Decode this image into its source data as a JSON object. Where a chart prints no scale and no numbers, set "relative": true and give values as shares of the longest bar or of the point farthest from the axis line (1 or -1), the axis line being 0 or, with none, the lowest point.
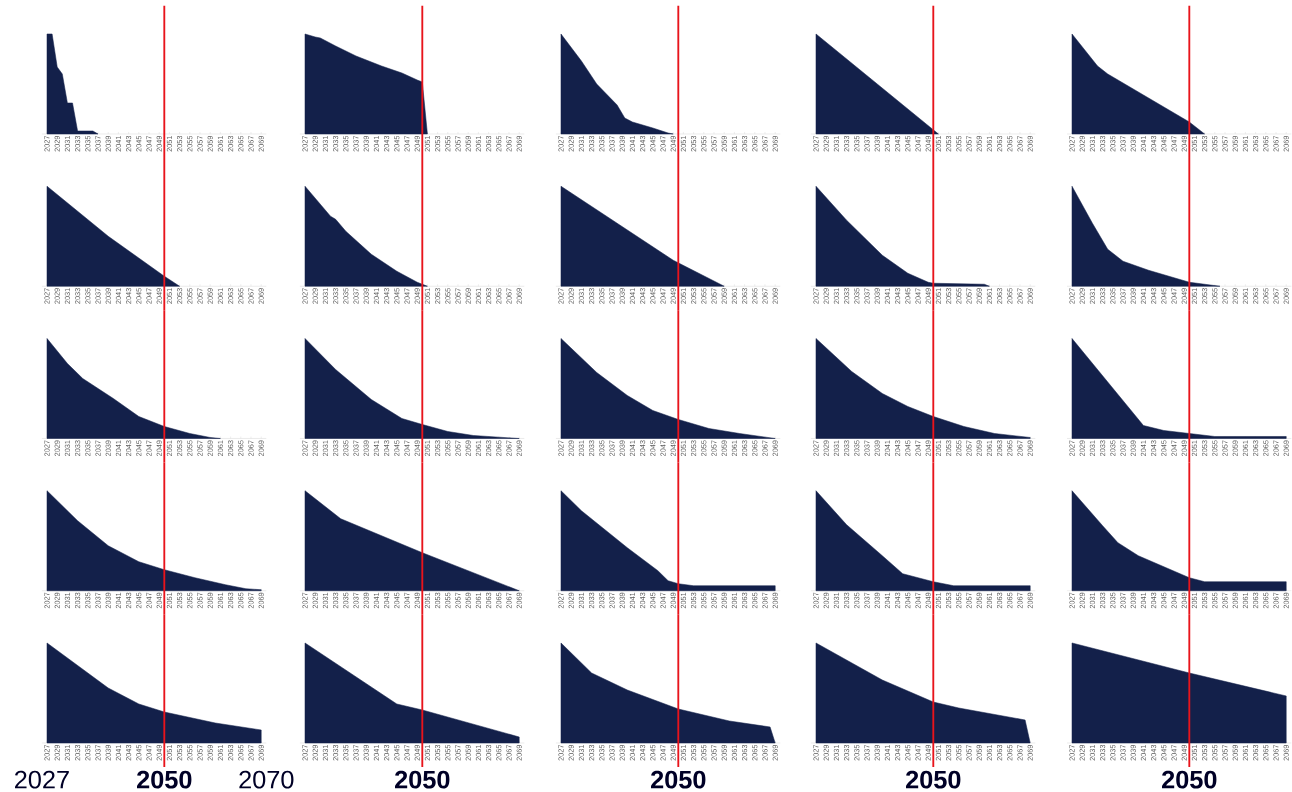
{
  "chart_data": [
    {
      "type": "area",
      "relative": true,
      "color": "#13204a",
      "xlim": [
        2026,
        2070
      ],
      "xticks": [
        2027,
        2029,
        2031,
        2033,
        2035,
        2037,
        2039,
        2041,
        2043,
        2045,
        2047,
        2049,
        2051,
        2053,
        2055,
        2057,
        2059,
        2061,
        2063,
        2065,
        2067,
        2069
      ],
      "ref_lines": [
        {
          "axis": "x",
          "value": 2050,
          "color": "#e8141b"
        }
      ],
      "x": [
        2027,
        2028,
        2029,
        2030,
        2031,
        2032,
        2033,
        2036,
        2037
      ],
      "values": [
        1,
        1,
        0.67,
        0.6,
        0.31,
        0.31,
        0.03,
        0.03,
        0
      ]
    },
    {
      "type": "area",
      "relative": true,
      "color": "#13204a",
      "xlim": [
        2026,
        2070
      ],
      "xticks": [
        2027,
        2029,
        2031,
        2033,
        2035,
        2037,
        2039,
        2041,
        2043,
        2045,
        2047,
        2049,
        2051,
        2053,
        2055,
        2057,
        2059,
        2061,
        2063,
        2065,
        2067,
        2069
      ],
      "ref_lines": [
        {
          "axis": "x",
          "value": 2050,
          "color": "#e8141b"
        }
      ],
      "x": [
        2027,
        2029,
        2030,
        2033,
        2037,
        2042,
        2046,
        2049,
        2050,
        2051
      ],
      "values": [
        1,
        0.97,
        0.96,
        0.88,
        0.78,
        0.68,
        0.61,
        0.54,
        0.52,
        0
      ]
    },
    {
      "type": "area",
      "relative": true,
      "color": "#13204a",
      "xlim": [
        2026,
        2070
      ],
      "xticks": [
        2027,
        2029,
        2031,
        2033,
        2035,
        2037,
        2039,
        2041,
        2043,
        2045,
        2047,
        2049,
        2051,
        2053,
        2055,
        2057,
        2059,
        2061,
        2063,
        2065,
        2067,
        2069
      ],
      "ref_lines": [
        {
          "axis": "x",
          "value": 2050,
          "color": "#e8141b"
        }
      ],
      "x": [
        2027,
        2031,
        2034,
        2038,
        2039.5,
        2041,
        2045,
        2048,
        2049
      ],
      "values": [
        1,
        0.73,
        0.5,
        0.29,
        0.16,
        0.12,
        0.06,
        0.01,
        0
      ]
    },
    {
      "type": "area",
      "relative": true,
      "color": "#13204a",
      "xlim": [
        2026,
        2070
      ],
      "xticks": [
        2027,
        2029,
        2031,
        2033,
        2035,
        2037,
        2039,
        2041,
        2043,
        2045,
        2047,
        2049,
        2051,
        2053,
        2055,
        2057,
        2059,
        2061,
        2063,
        2065,
        2067,
        2069
      ],
      "ref_lines": [
        {
          "axis": "x",
          "value": 2050,
          "color": "#e8141b"
        }
      ],
      "x": [
        2027,
        2039,
        2051
      ],
      "values": [
        1,
        0.5,
        0
      ]
    },
    {
      "type": "area",
      "relative": true,
      "color": "#13204a",
      "xlim": [
        2026,
        2070
      ],
      "xticks": [
        2027,
        2029,
        2031,
        2033,
        2035,
        2037,
        2039,
        2041,
        2043,
        2045,
        2047,
        2049,
        2051,
        2053,
        2055,
        2057,
        2059,
        2061,
        2063,
        2065,
        2067,
        2069
      ],
      "ref_lines": [
        {
          "axis": "x",
          "value": 2050,
          "color": "#e8141b"
        }
      ],
      "x": [
        2027,
        2032,
        2034,
        2041,
        2050,
        2053
      ],
      "values": [
        1,
        0.68,
        0.6,
        0.39,
        0.12,
        0
      ]
    },
    {
      "type": "area",
      "relative": true,
      "color": "#13204a",
      "xlim": [
        2026,
        2070
      ],
      "xticks": [
        2027,
        2029,
        2031,
        2033,
        2035,
        2037,
        2039,
        2041,
        2043,
        2045,
        2047,
        2049,
        2051,
        2053,
        2055,
        2057,
        2059,
        2061,
        2063,
        2065,
        2067,
        2069
      ],
      "ref_lines": [
        {
          "axis": "x",
          "value": 2050,
          "color": "#e8141b"
        }
      ],
      "x": [
        2027,
        2039,
        2050,
        2053
      ],
      "values": [
        1,
        0.5,
        0.1,
        0
      ]
    },
    {
      "type": "area",
      "relative": true,
      "color": "#13204a",
      "xlim": [
        2026,
        2070
      ],
      "xticks": [
        2027,
        2029,
        2031,
        2033,
        2035,
        2037,
        2039,
        2041,
        2043,
        2045,
        2047,
        2049,
        2051,
        2053,
        2055,
        2057,
        2059,
        2061,
        2063,
        2065,
        2067,
        2069
      ],
      "ref_lines": [
        {
          "axis": "x",
          "value": 2050,
          "color": "#e8141b"
        }
      ],
      "x": [
        2027,
        2032,
        2033,
        2035,
        2040,
        2045,
        2049,
        2051
      ],
      "values": [
        1,
        0.7,
        0.67,
        0.55,
        0.32,
        0.15,
        0.04,
        0
      ]
    },
    {
      "type": "area",
      "relative": true,
      "color": "#13204a",
      "xlim": [
        2026,
        2070
      ],
      "xticks": [
        2027,
        2029,
        2031,
        2033,
        2035,
        2037,
        2039,
        2041,
        2043,
        2045,
        2047,
        2049,
        2051,
        2053,
        2055,
        2057,
        2059,
        2061,
        2063,
        2065,
        2067,
        2069
      ],
      "ref_lines": [
        {
          "axis": "x",
          "value": 2050,
          "color": "#e8141b"
        }
      ],
      "x": [
        2027,
        2038,
        2049,
        2059
      ],
      "values": [
        1,
        0.63,
        0.26,
        0
      ]
    },
    {
      "type": "area",
      "relative": true,
      "color": "#13204a",
      "xlim": [
        2026,
        2070
      ],
      "xticks": [
        2027,
        2029,
        2031,
        2033,
        2035,
        2037,
        2039,
        2041,
        2043,
        2045,
        2047,
        2049,
        2051,
        2053,
        2055,
        2057,
        2059,
        2061,
        2063,
        2065,
        2067,
        2069
      ],
      "ref_lines": [
        {
          "axis": "x",
          "value": 2050,
          "color": "#e8141b"
        }
      ],
      "x": [
        2027,
        2033,
        2040,
        2045,
        2049,
        2050,
        2060,
        2061
      ],
      "values": [
        1,
        0.66,
        0.31,
        0.13,
        0.04,
        0.03,
        0.02,
        0
      ]
    },
    {
      "type": "area",
      "relative": true,
      "color": "#13204a",
      "xlim": [
        2026,
        2070
      ],
      "xticks": [
        2027,
        2029,
        2031,
        2033,
        2035,
        2037,
        2039,
        2041,
        2043,
        2045,
        2047,
        2049,
        2051,
        2053,
        2055,
        2057,
        2059,
        2061,
        2063,
        2065,
        2067,
        2069
      ],
      "ref_lines": [
        {
          "axis": "x",
          "value": 2050,
          "color": "#e8141b"
        }
      ],
      "x": [
        2027,
        2031,
        2034,
        2037,
        2042,
        2050,
        2056
      ],
      "values": [
        1,
        0.63,
        0.37,
        0.25,
        0.16,
        0.04,
        0
      ]
    },
    {
      "type": "area",
      "relative": true,
      "color": "#13204a",
      "xlim": [
        2026,
        2070
      ],
      "xticks": [
        2027,
        2029,
        2031,
        2033,
        2035,
        2037,
        2039,
        2041,
        2043,
        2045,
        2047,
        2049,
        2051,
        2053,
        2055,
        2057,
        2059,
        2061,
        2063,
        2065,
        2067,
        2069
      ],
      "ref_lines": [
        {
          "axis": "x",
          "value": 2050,
          "color": "#e8141b"
        }
      ],
      "x": [
        2027,
        2031,
        2034,
        2040,
        2045,
        2050,
        2055,
        2059,
        2061
      ],
      "values": [
        1,
        0.75,
        0.6,
        0.4,
        0.22,
        0.12,
        0.05,
        0.01,
        0
      ]
    },
    {
      "type": "area",
      "relative": true,
      "color": "#13204a",
      "xlim": [
        2026,
        2070
      ],
      "xticks": [
        2027,
        2029,
        2031,
        2033,
        2035,
        2037,
        2039,
        2041,
        2043,
        2045,
        2047,
        2049,
        2051,
        2053,
        2055,
        2057,
        2059,
        2061,
        2063,
        2065,
        2067,
        2069
      ],
      "ref_lines": [
        {
          "axis": "x",
          "value": 2050,
          "color": "#e8141b"
        }
      ],
      "x": [
        2027,
        2033,
        2040,
        2046,
        2050,
        2055,
        2060,
        2069
      ],
      "values": [
        1,
        0.69,
        0.39,
        0.2,
        0.14,
        0.07,
        0.03,
        0
      ]
    },
    {
      "type": "area",
      "relative": true,
      "color": "#13204a",
      "xlim": [
        2026,
        2070
      ],
      "xticks": [
        2027,
        2029,
        2031,
        2033,
        2035,
        2037,
        2039,
        2041,
        2043,
        2045,
        2047,
        2049,
        2051,
        2053,
        2055,
        2057,
        2059,
        2061,
        2063,
        2065,
        2067,
        2069
      ],
      "ref_lines": [
        {
          "axis": "x",
          "value": 2050,
          "color": "#e8141b"
        }
      ],
      "x": [
        2027,
        2034,
        2040,
        2045,
        2050,
        2056,
        2062,
        2069
      ],
      "values": [
        1,
        0.66,
        0.43,
        0.28,
        0.19,
        0.1,
        0.05,
        0
      ]
    },
    {
      "type": "area",
      "relative": true,
      "color": "#13204a",
      "xlim": [
        2026,
        2070
      ],
      "xticks": [
        2027,
        2029,
        2031,
        2033,
        2035,
        2037,
        2039,
        2041,
        2043,
        2045,
        2047,
        2049,
        2051,
        2053,
        2055,
        2057,
        2059,
        2061,
        2063,
        2065,
        2067,
        2069
      ],
      "ref_lines": [
        {
          "axis": "x",
          "value": 2050,
          "color": "#e8141b"
        }
      ],
      "x": [
        2027,
        2034,
        2040,
        2045,
        2050,
        2056,
        2062,
        2069
      ],
      "values": [
        1,
        0.67,
        0.45,
        0.32,
        0.22,
        0.12,
        0.05,
        0.01
      ]
    },
    {
      "type": "area",
      "relative": true,
      "color": "#13204a",
      "xlim": [
        2026,
        2070
      ],
      "xticks": [
        2027,
        2029,
        2031,
        2033,
        2035,
        2037,
        2039,
        2041,
        2043,
        2045,
        2047,
        2049,
        2051,
        2053,
        2055,
        2057,
        2059,
        2061,
        2063,
        2065,
        2067,
        2069
      ],
      "ref_lines": [
        {
          "axis": "x",
          "value": 2050,
          "color": "#e8141b"
        }
      ],
      "x": [
        2027,
        2041,
        2045,
        2050,
        2055,
        2069
      ],
      "values": [
        1,
        0.13,
        0.08,
        0.05,
        0.02,
        0.02
      ]
    },
    {
      "type": "area",
      "relative": true,
      "color": "#13204a",
      "xlim": [
        2026,
        2070
      ],
      "xticks": [
        2027,
        2029,
        2031,
        2033,
        2035,
        2037,
        2039,
        2041,
        2043,
        2045,
        2047,
        2049,
        2051,
        2053,
        2055,
        2057,
        2059,
        2061,
        2063,
        2065,
        2067,
        2069
      ],
      "ref_lines": [
        {
          "axis": "x",
          "value": 2050,
          "color": "#e8141b"
        }
      ],
      "x": [
        2027,
        2033,
        2039,
        2045,
        2050,
        2056,
        2062,
        2066,
        2069
      ],
      "values": [
        1,
        0.7,
        0.45,
        0.29,
        0.21,
        0.13,
        0.06,
        0.02,
        0.01
      ]
    },
    {
      "type": "area",
      "relative": true,
      "color": "#13204a",
      "xlim": [
        2026,
        2070
      ],
      "xticks": [
        2027,
        2029,
        2031,
        2033,
        2035,
        2037,
        2039,
        2041,
        2043,
        2045,
        2047,
        2049,
        2051,
        2053,
        2055,
        2057,
        2059,
        2061,
        2063,
        2065,
        2067,
        2069
      ],
      "ref_lines": [
        {
          "axis": "x",
          "value": 2050,
          "color": "#e8141b"
        }
      ],
      "x": [
        2027,
        2034,
        2050,
        2069
      ],
      "values": [
        1,
        0.72,
        0.38,
        0
      ]
    },
    {
      "type": "area",
      "relative": true,
      "color": "#13204a",
      "xlim": [
        2026,
        2070
      ],
      "xticks": [
        2027,
        2029,
        2031,
        2033,
        2035,
        2037,
        2039,
        2041,
        2043,
        2045,
        2047,
        2049,
        2051,
        2053,
        2055,
        2057,
        2059,
        2061,
        2063,
        2065,
        2067,
        2069
      ],
      "ref_lines": [
        {
          "axis": "x",
          "value": 2050,
          "color": "#e8141b"
        }
      ],
      "x": [
        2027,
        2031,
        2040,
        2046,
        2048,
        2050,
        2053,
        2069
      ],
      "values": [
        1,
        0.8,
        0.43,
        0.2,
        0.1,
        0.07,
        0.05,
        0.05
      ]
    },
    {
      "type": "area",
      "relative": true,
      "color": "#13204a",
      "xlim": [
        2026,
        2070
      ],
      "xticks": [
        2027,
        2029,
        2031,
        2033,
        2035,
        2037,
        2039,
        2041,
        2043,
        2045,
        2047,
        2049,
        2051,
        2053,
        2055,
        2057,
        2059,
        2061,
        2063,
        2065,
        2067,
        2069
      ],
      "ref_lines": [
        {
          "axis": "x",
          "value": 2050,
          "color": "#e8141b"
        }
      ],
      "x": [
        2027,
        2033,
        2040,
        2044,
        2050,
        2054,
        2069
      ],
      "values": [
        1,
        0.66,
        0.35,
        0.17,
        0.09,
        0.05,
        0.05
      ]
    },
    {
      "type": "area",
      "relative": true,
      "color": "#13204a",
      "xlim": [
        2026,
        2070
      ],
      "xticks": [
        2027,
        2029,
        2031,
        2033,
        2035,
        2037,
        2039,
        2041,
        2043,
        2045,
        2047,
        2049,
        2051,
        2053,
        2055,
        2057,
        2059,
        2061,
        2063,
        2065,
        2067,
        2069
      ],
      "ref_lines": [
        {
          "axis": "x",
          "value": 2050,
          "color": "#e8141b"
        }
      ],
      "x": [
        2027,
        2033,
        2036,
        2040,
        2050,
        2053,
        2069
      ],
      "values": [
        1,
        0.65,
        0.48,
        0.35,
        0.13,
        0.09,
        0.09
      ]
    },
    {
      "type": "area",
      "relative": true,
      "color": "#13204a",
      "xlim": [
        2026,
        2070
      ],
      "xticks": [
        2027,
        2029,
        2031,
        2033,
        2035,
        2037,
        2039,
        2041,
        2043,
        2045,
        2047,
        2049,
        2051,
        2053,
        2055,
        2057,
        2059,
        2061,
        2063,
        2065,
        2067,
        2069
      ],
      "ref_lines": [
        {
          "axis": "x",
          "value": 2050,
          "color": "#e8141b"
        }
      ],
      "x": [
        2027,
        2039,
        2045,
        2050,
        2060,
        2069
      ],
      "values": [
        1,
        0.55,
        0.39,
        0.31,
        0.2,
        0.13
      ],
      "annotations": [
        "2027",
        "2050",
        "2070"
      ]
    },
    {
      "type": "area",
      "relative": true,
      "color": "#13204a",
      "xlim": [
        2026,
        2070
      ],
      "xticks": [
        2027,
        2029,
        2031,
        2033,
        2035,
        2037,
        2039,
        2041,
        2043,
        2045,
        2047,
        2049,
        2051,
        2053,
        2055,
        2057,
        2059,
        2061,
        2063,
        2065,
        2067,
        2069
      ],
      "ref_lines": [
        {
          "axis": "x",
          "value": 2050,
          "color": "#e8141b"
        }
      ],
      "x": [
        2027,
        2045,
        2050,
        2069
      ],
      "values": [
        1,
        0.39,
        0.33,
        0.06
      ],
      "annotations": [
        "2050"
      ]
    },
    {
      "type": "area",
      "relative": true,
      "color": "#13204a",
      "xlim": [
        2026,
        2070
      ],
      "xticks": [
        2027,
        2029,
        2031,
        2033,
        2035,
        2037,
        2039,
        2041,
        2043,
        2045,
        2047,
        2049,
        2051,
        2053,
        2055,
        2057,
        2059,
        2061,
        2063,
        2065,
        2067,
        2069
      ],
      "ref_lines": [
        {
          "axis": "x",
          "value": 2050,
          "color": "#e8141b"
        }
      ],
      "x": [
        2027,
        2033,
        2040,
        2050,
        2060,
        2068,
        2069
      ],
      "values": [
        1,
        0.7,
        0.53,
        0.34,
        0.22,
        0.16,
        0
      ],
      "annotations": [
        "2050"
      ]
    },
    {
      "type": "area",
      "relative": true,
      "color": "#13204a",
      "xlim": [
        2026,
        2070
      ],
      "xticks": [
        2027,
        2029,
        2031,
        2033,
        2035,
        2037,
        2039,
        2041,
        2043,
        2045,
        2047,
        2049,
        2051,
        2053,
        2055,
        2057,
        2059,
        2061,
        2063,
        2065,
        2067,
        2069
      ],
      "ref_lines": [
        {
          "axis": "x",
          "value": 2050,
          "color": "#e8141b"
        }
      ],
      "x": [
        2027,
        2040,
        2050,
        2055,
        2068,
        2069
      ],
      "values": [
        1,
        0.63,
        0.41,
        0.35,
        0.23,
        0
      ],
      "annotations": [
        "2050"
      ]
    },
    {
      "type": "area",
      "relative": true,
      "color": "#13204a",
      "xlim": [
        2026,
        2070
      ],
      "xticks": [
        2027,
        2029,
        2031,
        2033,
        2035,
        2037,
        2039,
        2041,
        2043,
        2045,
        2047,
        2049,
        2051,
        2053,
        2055,
        2057,
        2059,
        2061,
        2063,
        2065,
        2067,
        2069
      ],
      "ref_lines": [
        {
          "axis": "x",
          "value": 2050,
          "color": "#e8141b"
        }
      ],
      "x": [
        2027,
        2050,
        2069
      ],
      "values": [
        1,
        0.7,
        0.47
      ],
      "annotations": [
        "2050"
      ]
    }
  ]
}
